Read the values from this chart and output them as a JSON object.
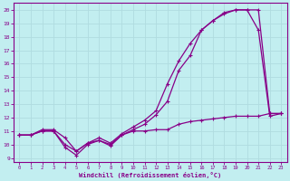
{
  "xlabel": "Windchill (Refroidissement éolien,°C)",
  "bg_color": "#c2eef0",
  "line_color": "#880088",
  "grid_major_color": "#b0dce0",
  "grid_minor_color": "#c8eef0",
  "xlim": [
    -0.5,
    23.5
  ],
  "ylim": [
    8.7,
    20.5
  ],
  "xticks": [
    0,
    1,
    2,
    3,
    4,
    5,
    6,
    7,
    8,
    9,
    10,
    11,
    12,
    13,
    14,
    15,
    16,
    17,
    18,
    19,
    20,
    21,
    22,
    23
  ],
  "yticks": [
    9,
    10,
    11,
    12,
    13,
    14,
    15,
    16,
    17,
    18,
    19,
    20
  ],
  "line1_x": [
    0,
    1,
    2,
    3,
    4,
    5,
    6,
    7,
    8,
    9,
    10,
    11,
    12,
    13,
    14,
    15,
    16,
    17,
    18,
    19,
    20,
    21,
    22,
    23
  ],
  "line1_y": [
    10.7,
    10.7,
    11.0,
    11.0,
    9.8,
    9.2,
    10.0,
    10.3,
    9.9,
    10.7,
    11.0,
    11.0,
    11.1,
    11.1,
    11.5,
    11.7,
    11.8,
    11.9,
    12.0,
    12.1,
    12.1,
    12.1,
    12.3,
    12.3
  ],
  "line2_x": [
    0,
    1,
    2,
    3,
    4,
    5,
    6,
    7,
    8,
    9,
    10,
    11,
    12,
    13,
    14,
    15,
    16,
    17,
    18,
    19,
    20,
    21,
    22,
    23
  ],
  "line2_y": [
    10.7,
    10.7,
    11.1,
    11.1,
    10.5,
    9.5,
    10.1,
    10.5,
    10.1,
    10.8,
    11.3,
    11.8,
    12.5,
    14.5,
    16.2,
    17.5,
    18.5,
    19.2,
    19.7,
    20.0,
    20.0,
    18.5,
    12.1,
    12.3
  ],
  "line3_x": [
    0,
    1,
    2,
    3,
    4,
    5,
    6,
    7,
    8,
    9,
    10,
    11,
    12,
    13,
    14,
    15,
    16,
    17,
    18,
    19,
    20,
    21,
    22,
    23
  ],
  "line3_y": [
    10.7,
    10.7,
    11.0,
    11.0,
    10.0,
    9.5,
    10.1,
    10.3,
    10.0,
    10.7,
    11.1,
    11.5,
    12.2,
    13.2,
    15.5,
    16.6,
    18.5,
    19.2,
    19.8,
    20.0,
    20.0,
    20.0,
    12.3,
    12.3
  ],
  "marker": "+"
}
